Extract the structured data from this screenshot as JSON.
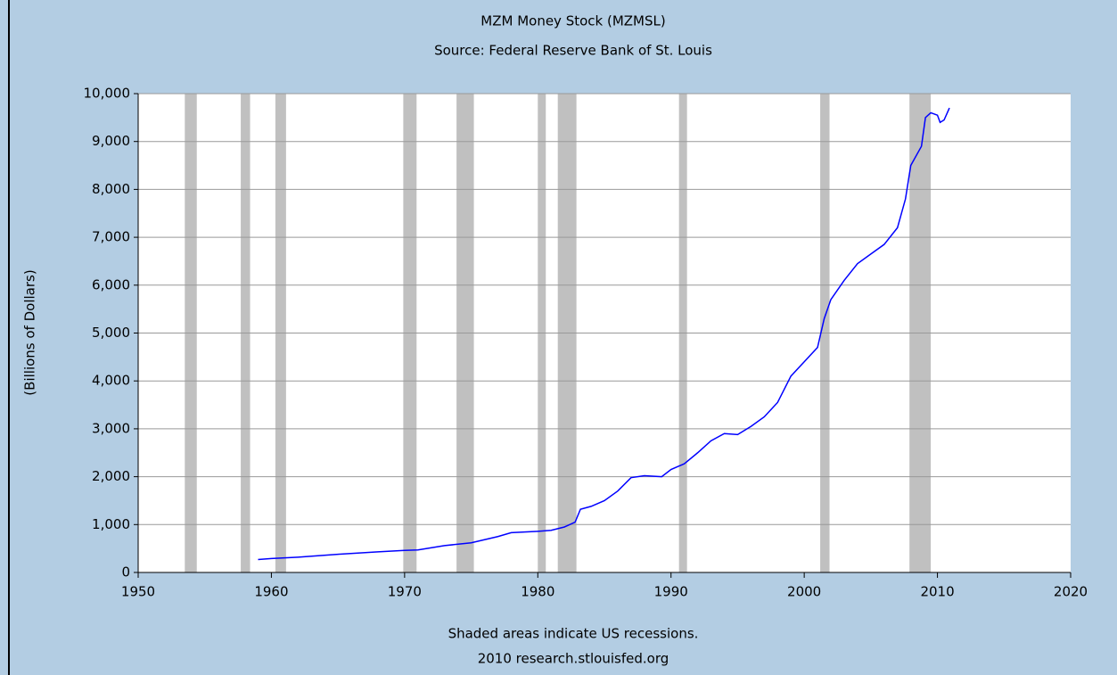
{
  "chart_data": {
    "type": "line",
    "title": "MZM Money Stock (MZMSL)",
    "subtitle": "Source: Federal Reserve Bank of St. Louis",
    "ylabel": "(Billions of Dollars)",
    "notes": [
      "Shaded areas indicate US recessions.",
      "2010 research.stlouisfed.org"
    ],
    "x": [
      1959.0,
      1960,
      1962,
      1965,
      1968,
      1970,
      1971,
      1973,
      1975,
      1977,
      1978,
      1980,
      1981,
      1982,
      1982.8,
      1983.2,
      1984,
      1985,
      1986,
      1987,
      1988,
      1989.3,
      1990,
      1991,
      1992,
      1993,
      1994,
      1995,
      1996,
      1997,
      1998,
      1999,
      2000,
      2001,
      2001.5,
      2002,
      2003,
      2004,
      2005,
      2006,
      2007,
      2007.6,
      2008,
      2008.8,
      2009.1,
      2009.5,
      2010,
      2010.2,
      2010.5,
      2010.9
    ],
    "series": [
      {
        "name": "MZMSL",
        "color": "#0000ff",
        "values": [
          270,
          290,
          320,
          380,
          430,
          460,
          470,
          560,
          620,
          750,
          830,
          860,
          880,
          950,
          1050,
          1320,
          1380,
          1500,
          1700,
          1980,
          2020,
          2000,
          2150,
          2270,
          2500,
          2750,
          2900,
          2880,
          3050,
          3250,
          3550,
          4100,
          4400,
          4700,
          5300,
          5700,
          6100,
          6450,
          6650,
          6850,
          7200,
          7800,
          8500,
          8900,
          9500,
          9600,
          9550,
          9400,
          9450,
          9700
        ]
      }
    ],
    "recessions": [
      [
        1953.5,
        1954.4
      ],
      [
        1957.7,
        1958.4
      ],
      [
        1960.3,
        1961.1
      ],
      [
        1969.9,
        1970.9
      ],
      [
        1973.9,
        1975.2
      ],
      [
        1980.0,
        1980.6
      ],
      [
        1981.5,
        1982.9
      ],
      [
        1990.6,
        1991.2
      ],
      [
        2001.2,
        2001.9
      ],
      [
        2007.9,
        2009.5
      ]
    ],
    "recession_color": "#c0c0c0",
    "xlim": [
      1950,
      2020
    ],
    "xticks": [
      1950,
      1960,
      1970,
      1980,
      1990,
      2000,
      2010,
      2020
    ],
    "ylim": [
      0,
      10000
    ],
    "yticks": [
      0,
      {
        "value": 1000,
        "label": "1,000"
      },
      {
        "value": 2000,
        "label": "2,000"
      },
      {
        "value": 3000,
        "label": "3,000"
      },
      {
        "value": 4000,
        "label": "4,000"
      },
      {
        "value": 5000,
        "label": "5,000"
      },
      {
        "value": 6000,
        "label": "6,000"
      },
      {
        "value": 7000,
        "label": "7,000"
      },
      {
        "value": 8000,
        "label": "8,000"
      },
      {
        "value": 9000,
        "label": "9,000"
      },
      {
        "value": 10000,
        "label": "10,000"
      }
    ],
    "grid": true
  }
}
